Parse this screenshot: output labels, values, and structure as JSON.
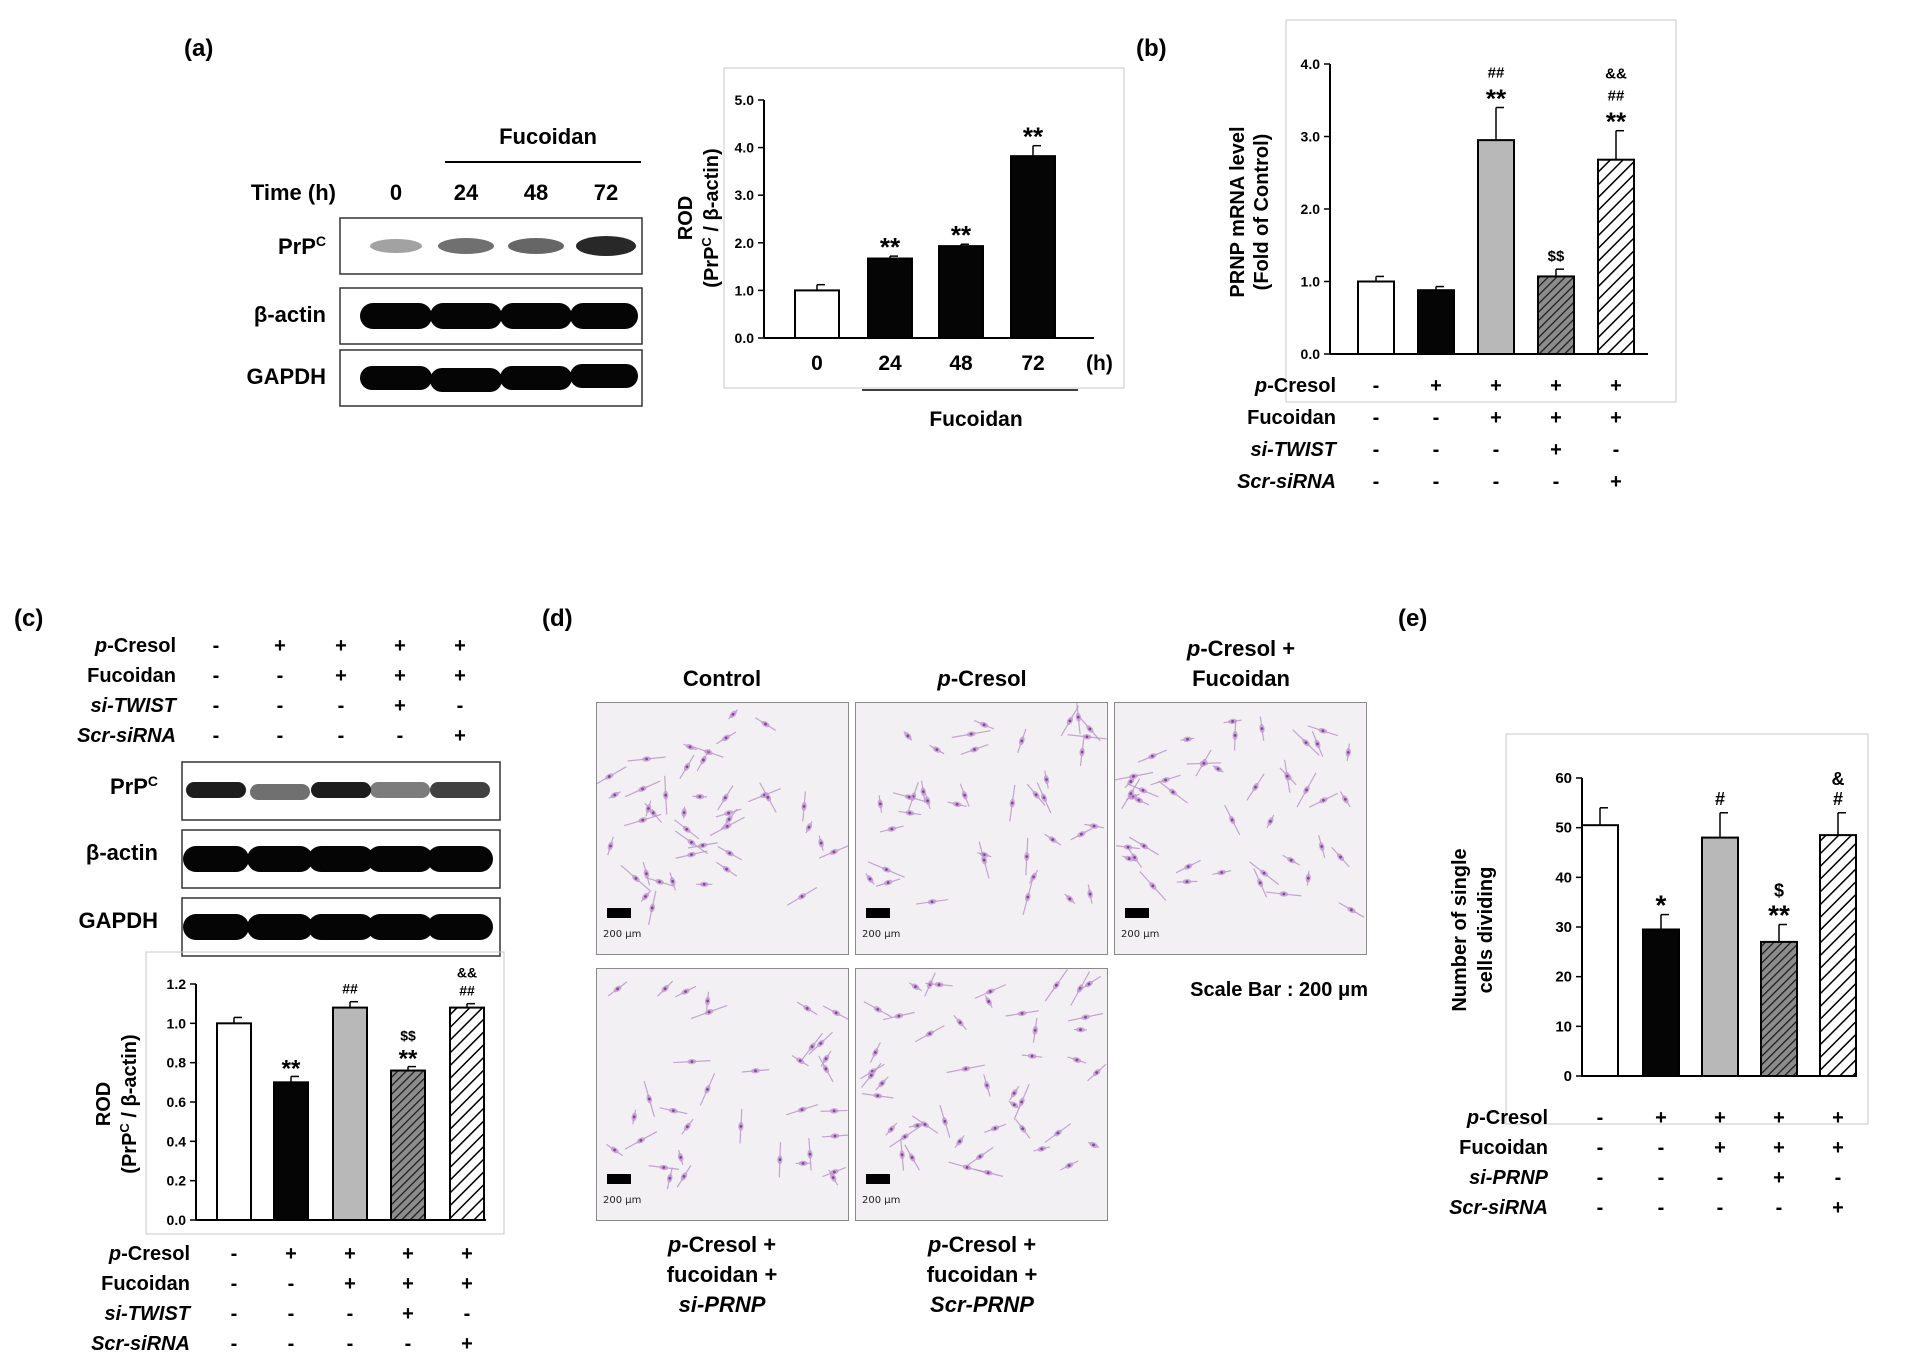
{
  "panels": {
    "a": "(a)",
    "b": "(b)",
    "c": "(c)",
    "d": "(d)",
    "e": "(e)"
  },
  "blot_a": {
    "header": "Fucoidan",
    "time_label": "Time (h)",
    "times": [
      "0",
      "24",
      "48",
      "72"
    ],
    "rows": [
      "PrPC",
      "β-actin",
      "GAPDH"
    ]
  },
  "blot_c": {
    "rows": [
      "PrPC",
      "β-actin",
      "GAPDH"
    ],
    "conditions": [
      {
        "label": "p-Cresol",
        "signs": [
          "-",
          "+",
          "+",
          "+",
          "+"
        ]
      },
      {
        "label": "Fucoidan",
        "signs": [
          "-",
          "-",
          "+",
          "+",
          "+"
        ]
      },
      {
        "label": "si-TWIST",
        "signs": [
          "-",
          "-",
          "-",
          "+",
          "-"
        ]
      },
      {
        "label": "Scr-siRNA",
        "signs": [
          "-",
          "-",
          "-",
          "-",
          "+"
        ]
      }
    ]
  },
  "micro": {
    "titles": [
      "Control",
      "p-Cresol",
      "p-Cresol + Fucoidan"
    ],
    "bottom_titles": [
      "p-Cresol + fucoidan + si-PRNP",
      "p-Cresol + fucoidan + Scr-PRNP"
    ],
    "scale_text": "Scale Bar : 200 μm",
    "bar_label": "200 μm"
  },
  "chart_data": [
    {
      "id": "a",
      "type": "bar",
      "categories": [
        "0",
        "24",
        "48",
        "72"
      ],
      "values": [
        1.0,
        1.67,
        1.93,
        3.82
      ],
      "errors": [
        0.12,
        0.05,
        0.04,
        0.22
      ],
      "annotations": [
        "",
        "**",
        "**",
        "**"
      ],
      "fills": [
        "white",
        "black",
        "black",
        "black"
      ],
      "ylabel": "ROD (PrPC / β-actin)",
      "yticks": [
        "0.0",
        "1.0",
        "2.0",
        "3.0",
        "4.0",
        "5.0"
      ],
      "ylim": [
        0,
        5
      ],
      "x_unit": "(h)",
      "group_label": "Fucoidan"
    },
    {
      "id": "b",
      "type": "bar",
      "categories": [
        "1",
        "2",
        "3",
        "4",
        "5"
      ],
      "values": [
        1.0,
        0.88,
        2.95,
        1.07,
        2.68
      ],
      "errors": [
        0.07,
        0.05,
        0.45,
        0.1,
        0.4
      ],
      "annotations": [
        [],
        [],
        [
          "##",
          "**"
        ],
        [
          "$$"
        ],
        [
          "&&",
          "##",
          "**"
        ]
      ],
      "fills": [
        "white",
        "black",
        "gray",
        "dense-hatch",
        "hatch"
      ],
      "ylabel": "PRNP mRNA level (Fold of Control)",
      "yticks": [
        "0.0",
        "1.0",
        "2.0",
        "3.0",
        "4.0"
      ],
      "ylim": [
        0,
        4
      ],
      "conditions": [
        {
          "label": "p-Cresol",
          "signs": [
            "-",
            "+",
            "+",
            "+",
            "+"
          ]
        },
        {
          "label": "Fucoidan",
          "signs": [
            "-",
            "-",
            "+",
            "+",
            "+"
          ]
        },
        {
          "label": "si-TWIST",
          "signs": [
            "-",
            "-",
            "-",
            "+",
            "-"
          ]
        },
        {
          "label": "Scr-siRNA",
          "signs": [
            "-",
            "-",
            "-",
            "-",
            "+"
          ]
        }
      ]
    },
    {
      "id": "c",
      "type": "bar",
      "categories": [
        "1",
        "2",
        "3",
        "4",
        "5"
      ],
      "values": [
        1.0,
        0.7,
        1.08,
        0.76,
        1.08
      ],
      "errors": [
        0.03,
        0.03,
        0.03,
        0.02,
        0.02
      ],
      "annotations": [
        [],
        [
          "**"
        ],
        [
          "##"
        ],
        [
          "$$",
          "**"
        ],
        [
          "&&",
          "##"
        ]
      ],
      "fills": [
        "white",
        "black",
        "gray",
        "dense-hatch",
        "hatch"
      ],
      "ylabel": "ROD (PrPC / β-actin)",
      "yticks": [
        "0.0",
        "0.2",
        "0.4",
        "0.6",
        "0.8",
        "1.0",
        "1.2"
      ],
      "ylim": [
        0,
        1.2
      ],
      "conditions": [
        {
          "label": "p-Cresol",
          "signs": [
            "-",
            "+",
            "+",
            "+",
            "+"
          ]
        },
        {
          "label": "Fucoidan",
          "signs": [
            "-",
            "-",
            "+",
            "+",
            "+"
          ]
        },
        {
          "label": "si-TWIST",
          "signs": [
            "-",
            "-",
            "-",
            "+",
            "-"
          ]
        },
        {
          "label": "Scr-siRNA",
          "signs": [
            "-",
            "-",
            "-",
            "-",
            "+"
          ]
        }
      ]
    },
    {
      "id": "e",
      "type": "bar",
      "categories": [
        "1",
        "2",
        "3",
        "4",
        "5"
      ],
      "values": [
        50.5,
        29.5,
        48.0,
        27.0,
        48.5
      ],
      "errors": [
        3.5,
        3.0,
        5.0,
        3.5,
        4.5
      ],
      "annotations": [
        [],
        [
          "*"
        ],
        [
          "#"
        ],
        [
          "$",
          "**"
        ],
        [
          "&",
          "#"
        ]
      ],
      "fills": [
        "white",
        "black",
        "gray",
        "dense-hatch",
        "hatch"
      ],
      "ylabel": "Number of single cells dividing",
      "yticks": [
        "0",
        "10",
        "20",
        "30",
        "40",
        "50",
        "60"
      ],
      "ylim": [
        0,
        60
      ],
      "conditions": [
        {
          "label": "p-Cresol",
          "signs": [
            "-",
            "+",
            "+",
            "+",
            "+"
          ]
        },
        {
          "label": "Fucoidan",
          "signs": [
            "-",
            "-",
            "+",
            "+",
            "+"
          ]
        },
        {
          "label": "si-PRNP",
          "signs": [
            "-",
            "-",
            "-",
            "+",
            "-"
          ]
        },
        {
          "label": "Scr-siRNA",
          "signs": [
            "-",
            "-",
            "-",
            "-",
            "+"
          ]
        }
      ]
    }
  ]
}
